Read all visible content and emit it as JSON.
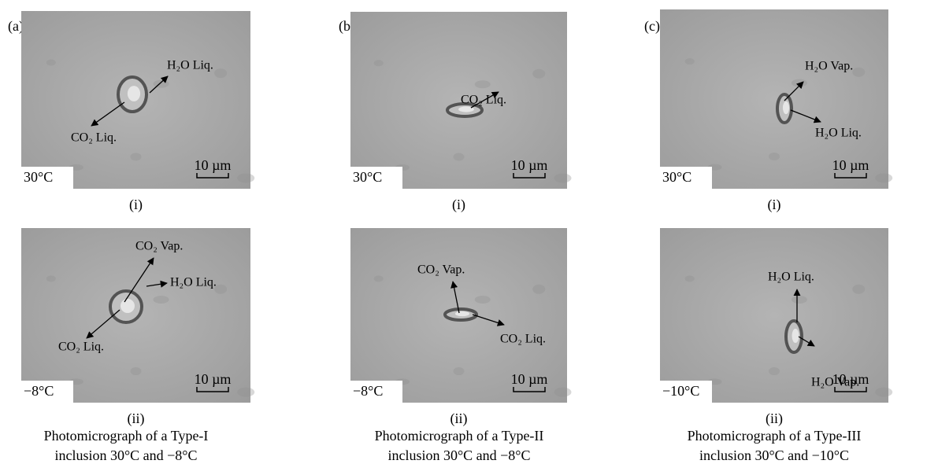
{
  "panels": [
    {
      "label": "(a)",
      "images": [
        {
          "sublabel": "(i)",
          "temperature": "30°C",
          "scale": "10 µm",
          "annotations": [
            "H₂O Liq.",
            "CO₂ Liq."
          ]
        },
        {
          "sublabel": "(ii)",
          "temperature": "−8°C",
          "scale": "10 µm",
          "annotations": [
            "CO₂ Vap.",
            "H₂O Liq.",
            "CO₂ Liq."
          ]
        }
      ],
      "caption": [
        "Photomicrograph of a Type-I",
        "inclusion 30°C and −8°C"
      ]
    },
    {
      "label": "(b)",
      "images": [
        {
          "sublabel": "(i)",
          "temperature": "30°C",
          "scale": "10 µm",
          "annotations": [
            "CO₂ Liq."
          ]
        },
        {
          "sublabel": "(ii)",
          "temperature": "−8°C",
          "scale": "10 µm",
          "annotations": [
            "CO₂ Vap.",
            "CO₂ Liq."
          ]
        }
      ],
      "caption": [
        "Photomicrograph of a Type-II",
        "inclusion 30°C and −8°C"
      ]
    },
    {
      "label": "(c)",
      "images": [
        {
          "sublabel": "(i)",
          "temperature": "30°C",
          "scale": "10 µm",
          "annotations": [
            "H₂O Vap.",
            "H₂O Liq."
          ]
        },
        {
          "sublabel": "(ii)",
          "temperature": "−10°C",
          "scale": "10 µm",
          "annotations": [
            "H₂O Liq.",
            "H₂O Vap."
          ]
        }
      ],
      "caption": [
        "Photomicrograph of a Type-III",
        "inclusion 30°C and −10°C"
      ]
    }
  ]
}
